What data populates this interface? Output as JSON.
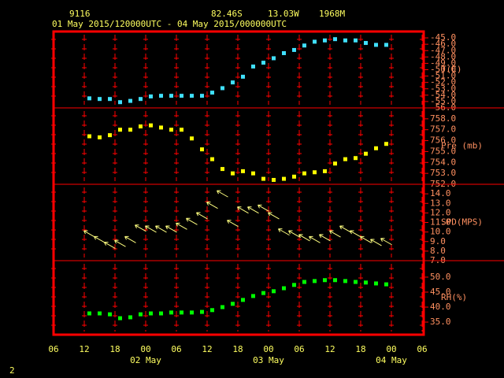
{
  "header": {
    "station": "9116",
    "lat": "82.46S",
    "lon": "13.03W",
    "elevation": "1968M",
    "period": "01 May 2015/120000UTC - 04 May 2015/000000UTC",
    "page": "2"
  },
  "chart_data": {
    "type": "scatter",
    "x": [
      7,
      9,
      11,
      13,
      15,
      17,
      19,
      21,
      23,
      25,
      27,
      29,
      31,
      33,
      35,
      37,
      39,
      41,
      43,
      45,
      47,
      49,
      51,
      53,
      55,
      57,
      59,
      61,
      63,
      65
    ],
    "xlim": [
      0,
      72
    ],
    "xticks": [
      {
        "value": 0,
        "label": "06"
      },
      {
        "value": 6,
        "label": "12"
      },
      {
        "value": 12,
        "label": "18"
      },
      {
        "value": 18,
        "label": "00"
      },
      {
        "value": 24,
        "label": "06"
      },
      {
        "value": 30,
        "label": "12"
      },
      {
        "value": 36,
        "label": "18"
      },
      {
        "value": 42,
        "label": "00"
      },
      {
        "value": 48,
        "label": "06"
      },
      {
        "value": 54,
        "label": "12"
      },
      {
        "value": 60,
        "label": "18"
      },
      {
        "value": 66,
        "label": "00"
      },
      {
        "value": 72,
        "label": "06"
      }
    ],
    "x_dates": [
      {
        "value": 18,
        "label": "02 May"
      },
      {
        "value": 42,
        "label": "03 May"
      },
      {
        "value": 66,
        "label": "04 May"
      }
    ],
    "panels": [
      {
        "label": "T(C)",
        "marker": "square",
        "color": "#40e0ff",
        "ylim": [
          -56,
          -44
        ],
        "yticks": [
          {
            "value": -45,
            "label": "-45.0"
          },
          {
            "value": -46,
            "label": "-46.0"
          },
          {
            "value": -47,
            "label": "-47.0"
          },
          {
            "value": -48,
            "label": "-48.0"
          },
          {
            "value": -49,
            "label": "-49.0"
          },
          {
            "value": -50,
            "label": "-50.0"
          },
          {
            "value": -51,
            "label": "-51.0"
          },
          {
            "value": -52,
            "label": "-52.0"
          },
          {
            "value": -53,
            "label": "-53.0"
          },
          {
            "value": -54,
            "label": "-54.0"
          },
          {
            "value": -55,
            "label": "-55.0"
          },
          {
            "value": -56,
            "label": "-56.0"
          }
        ],
        "values": [
          -54.5,
          -54.6,
          -54.6,
          -55.1,
          -54.9,
          -54.6,
          -54.2,
          -54.1,
          -54.1,
          -54.1,
          -54.1,
          -54.1,
          -53.6,
          -52.9,
          -52.0,
          -51.1,
          -49.5,
          -48.9,
          -48.2,
          -47.4,
          -46.9,
          -46.2,
          -45.6,
          -45.4,
          -45.2,
          -45.4,
          -45.4,
          -45.8,
          -46.1,
          -46.1
        ]
      },
      {
        "label": "Pre (mb)",
        "marker": "square",
        "color": "#ffff00",
        "ylim": [
          752,
          759
        ],
        "yticks": [
          {
            "value": 752,
            "label": "752.0"
          },
          {
            "value": 753,
            "label": "753.0"
          },
          {
            "value": 754,
            "label": "754.0"
          },
          {
            "value": 755,
            "label": "755.0"
          },
          {
            "value": 756,
            "label": "756.0"
          },
          {
            "value": 757,
            "label": "757.0"
          },
          {
            "value": 758,
            "label": "758.0"
          }
        ],
        "values": [
          756.4,
          756.3,
          756.5,
          757.0,
          757.0,
          757.3,
          757.4,
          757.2,
          757.0,
          757.0,
          756.2,
          755.2,
          754.3,
          753.4,
          753.0,
          753.2,
          753.0,
          752.5,
          752.4,
          752.5,
          752.7,
          753.0,
          753.1,
          753.2,
          753.9,
          754.3,
          754.4,
          754.8,
          755.3,
          755.7
        ]
      },
      {
        "label": "SPD(MPS)",
        "marker": "arrow",
        "color": "#ffff80",
        "ylim": [
          7,
          15
        ],
        "yticks": [
          {
            "value": 7,
            "label": "7.0"
          },
          {
            "value": 8,
            "label": "8.0"
          },
          {
            "value": 9,
            "label": "9.0"
          },
          {
            "value": 10,
            "label": "10.0"
          },
          {
            "value": 11,
            "label": "11.0"
          },
          {
            "value": 12,
            "label": "12.0"
          },
          {
            "value": 13,
            "label": "13.0"
          },
          {
            "value": 14,
            "label": "14.0"
          }
        ],
        "values": [
          9.8,
          9.2,
          8.6,
          8.8,
          9.2,
          10.4,
          10.3,
          10.3,
          10.3,
          10.6,
          11.1,
          11.7,
          12.8,
          14.0,
          10.9,
          12.3,
          12.3,
          12.5,
          11.7,
          10.0,
          9.8,
          9.4,
          9.2,
          9.4,
          9.8,
          10.3,
          9.8,
          9.2,
          8.9,
          9.0
        ]
      },
      {
        "label": "RH(%)",
        "marker": "square",
        "color": "#00ff00",
        "ylim": [
          30.8,
          55.5
        ],
        "yticks": [
          {
            "value": 35,
            "label": "35.0"
          },
          {
            "value": 40,
            "label": "40.0"
          },
          {
            "value": 45,
            "label": "45.0"
          },
          {
            "value": 50,
            "label": "50.0"
          }
        ],
        "values": [
          37.9,
          37.9,
          37.6,
          36.3,
          36.6,
          37.6,
          37.9,
          37.9,
          38.2,
          38.2,
          38.2,
          38.4,
          39.0,
          40.0,
          41.1,
          42.4,
          43.7,
          44.7,
          45.3,
          46.3,
          47.4,
          48.4,
          48.7,
          49.0,
          49.0,
          48.7,
          48.4,
          48.2,
          47.9,
          47.6
        ]
      }
    ]
  }
}
